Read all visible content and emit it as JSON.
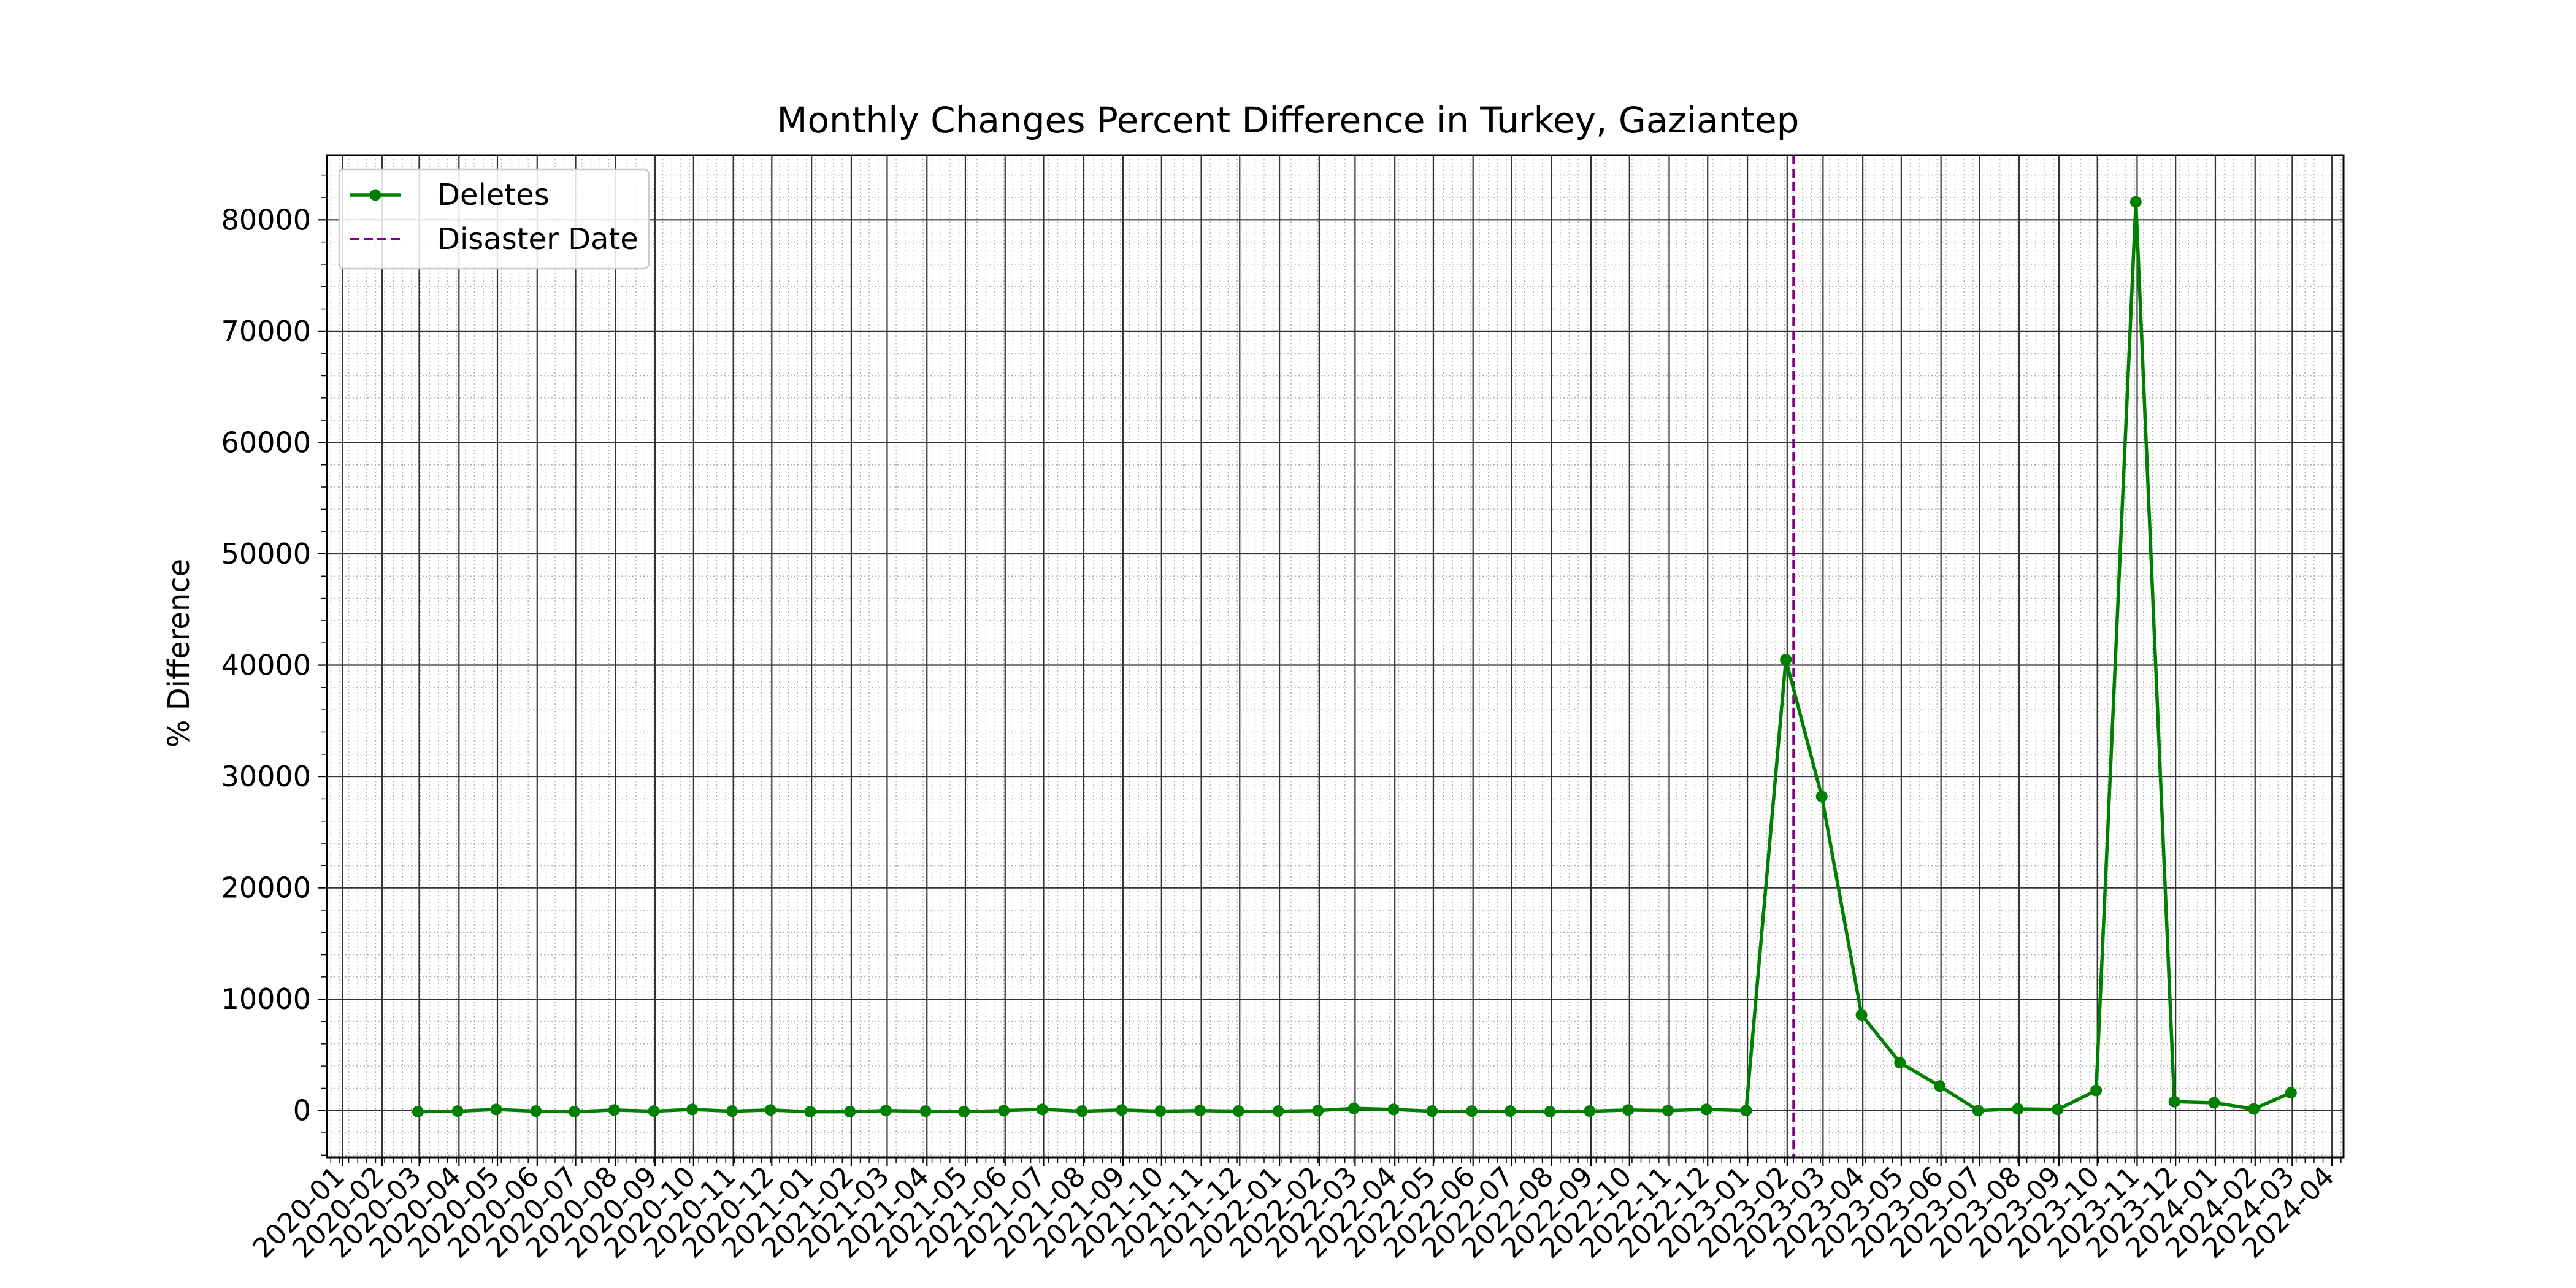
{
  "chart_data": {
    "type": "line",
    "title": "Monthly Changes Percent Difference in Turkey, Gaziantep",
    "xlabel": "",
    "ylabel": "% Difference",
    "x_ticks": [
      "2020-01",
      "2020-02",
      "2020-03",
      "2020-04",
      "2020-05",
      "2020-06",
      "2020-07",
      "2020-08",
      "2020-09",
      "2020-10",
      "2020-11",
      "2020-12",
      "2021-01",
      "2021-02",
      "2021-03",
      "2021-04",
      "2021-05",
      "2021-06",
      "2021-07",
      "2021-08",
      "2021-09",
      "2021-10",
      "2021-11",
      "2021-12",
      "2022-01",
      "2022-02",
      "2022-03",
      "2022-04",
      "2022-05",
      "2022-06",
      "2022-07",
      "2022-08",
      "2022-09",
      "2022-10",
      "2022-11",
      "2022-12",
      "2023-01",
      "2023-02",
      "2023-03",
      "2023-04",
      "2023-05",
      "2023-06",
      "2023-07",
      "2023-08",
      "2023-09",
      "2023-10",
      "2023-11",
      "2023-12",
      "2024-01",
      "2024-02",
      "2024-03",
      "2024-04"
    ],
    "y_ticks": [
      0,
      10000,
      20000,
      30000,
      40000,
      50000,
      60000,
      70000,
      80000
    ],
    "x_range": [
      "2019-12-20",
      "2024-04-10"
    ],
    "ylim": [
      -4200,
      85800
    ],
    "grid": true,
    "minor_grid": true,
    "legend_position": "top-left",
    "series": [
      {
        "name": "Deletes",
        "color": "#008000",
        "marker": "circle",
        "x": [
          "2020-02-29",
          "2020-03-31",
          "2020-04-30",
          "2020-05-31",
          "2020-06-30",
          "2020-07-31",
          "2020-08-31",
          "2020-09-30",
          "2020-10-31",
          "2020-11-30",
          "2020-12-31",
          "2021-01-31",
          "2021-02-28",
          "2021-03-31",
          "2021-04-30",
          "2021-05-31",
          "2021-06-30",
          "2021-07-31",
          "2021-08-31",
          "2021-09-30",
          "2021-10-31",
          "2021-11-30",
          "2021-12-31",
          "2022-01-31",
          "2022-02-28",
          "2022-03-31",
          "2022-04-30",
          "2022-05-31",
          "2022-06-30",
          "2022-07-31",
          "2022-08-31",
          "2022-09-30",
          "2022-10-31",
          "2022-11-30",
          "2022-12-31",
          "2023-01-31",
          "2023-02-28",
          "2023-03-31",
          "2023-04-30",
          "2023-05-31",
          "2023-06-30",
          "2023-07-31",
          "2023-08-31",
          "2023-09-30",
          "2023-10-31",
          "2023-11-30",
          "2023-12-31",
          "2024-01-31",
          "2024-02-29"
        ],
        "y": [
          -100,
          -50,
          100,
          -50,
          -100,
          50,
          -50,
          100,
          -50,
          50,
          -100,
          -100,
          0,
          -50,
          -100,
          0,
          100,
          -50,
          50,
          -50,
          0,
          -50,
          -50,
          0,
          200,
          100,
          -50,
          -50,
          -50,
          -100,
          -50,
          50,
          0,
          100,
          0,
          40500,
          28200,
          8600,
          4300,
          2200,
          0,
          150,
          100,
          1800,
          81600,
          800,
          700,
          150,
          1600
        ]
      }
    ],
    "reference_lines": [
      {
        "name": "Disaster Date",
        "x": "2023-02-06",
        "color": "#800080",
        "style": "dashed"
      }
    ]
  }
}
